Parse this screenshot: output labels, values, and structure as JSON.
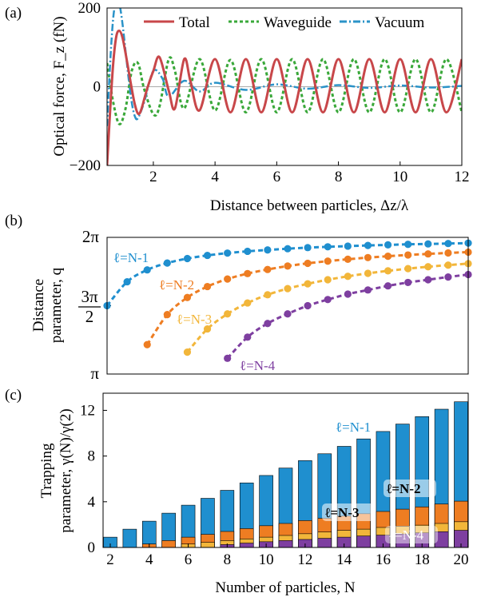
{
  "colors": {
    "total": "#c8474a",
    "waveguide": "#3aa83a",
    "vacuum": "#2b93c8",
    "l1": "#1f8fcf",
    "l2": "#ee7d22",
    "l3": "#f2b63a",
    "l4": "#7e3fa0",
    "zero_line": "#aaaaaa"
  },
  "chart_data": [
    {
      "type": "line",
      "panel_label": "(a)",
      "xlabel": "Distance between particles, Δz/λ",
      "ylabel": "Optical force, F_z (fN)",
      "xlim": [
        0.5,
        12
      ],
      "ylim": [
        -200,
        200
      ],
      "xticks": [
        2,
        4,
        6,
        8,
        10,
        12
      ],
      "xtick_labels": [
        "2",
        "4",
        "6",
        "8",
        "10",
        "12"
      ],
      "yticks": [
        -200,
        0,
        200
      ],
      "ytick_labels": [
        "−200",
        "0",
        "200"
      ],
      "legend": [
        "Total",
        "Waveguide",
        "Vacuum"
      ],
      "legend_placement": "top",
      "grid": false,
      "series": [
        {
          "name": "Total",
          "x": [
            0.5,
            0.6,
            0.7,
            0.8,
            0.9,
            1.0,
            1.1,
            1.2,
            1.3,
            1.4,
            1.5,
            1.6,
            1.8,
            2.0,
            2.2,
            2.5,
            2.7,
            3.0,
            3.2,
            3.5,
            4.0,
            4.5,
            5.0,
            5.5,
            6.0,
            6.5,
            7.0,
            7.5,
            8.0,
            8.5,
            9.0,
            9.5,
            10.0,
            10.5,
            11.0,
            11.5,
            12.0
          ],
          "y": [
            -200,
            -60,
            60,
            128,
            142,
            125,
            85,
            40,
            -5,
            -45,
            -68,
            -60,
            -5,
            40,
            75,
            -10,
            -55,
            70,
            15,
            -60,
            70,
            -65,
            70,
            -65,
            70,
            -65,
            70,
            -65,
            70,
            -65,
            70,
            -65,
            70,
            -65,
            70,
            -65,
            70
          ]
        },
        {
          "name": "Waveguide",
          "x": [
            0.5,
            0.7,
            0.9,
            1.1,
            1.3,
            1.5,
            1.7,
            2.0,
            2.2,
            2.5,
            2.7,
            3.0,
            3.5,
            4.0,
            4.5,
            5.0,
            5.5,
            6.0,
            6.5,
            7.0,
            7.5,
            8.0,
            8.5,
            9.0,
            9.5,
            10.0,
            10.5,
            11.0,
            11.5,
            12.0
          ],
          "y": [
            60,
            -40,
            -95,
            -55,
            40,
            60,
            -5,
            -70,
            -50,
            70,
            40,
            -55,
            70,
            -60,
            68,
            -65,
            70,
            -65,
            70,
            -65,
            70,
            -65,
            70,
            -65,
            70,
            -65,
            70,
            -65,
            70,
            -65
          ]
        },
        {
          "name": "Vacuum",
          "x": [
            0.5,
            0.6,
            0.7,
            0.8,
            0.9,
            1.0,
            1.1,
            1.2,
            1.3,
            1.4,
            1.5,
            1.7,
            2.0,
            2.3,
            2.5,
            3.0,
            3.5,
            4.0,
            5.0,
            6.0,
            7.0,
            8.0,
            9.0,
            10.0,
            11.0,
            12.0
          ],
          "y": [
            -100,
            60,
            175,
            220,
            210,
            160,
            90,
            20,
            -40,
            -75,
            -80,
            -40,
            40,
            20,
            -25,
            15,
            -12,
            10,
            -8,
            6,
            -5,
            4,
            -3,
            3,
            -2,
            2
          ]
        }
      ]
    },
    {
      "type": "scatter",
      "panel_label": "(b)",
      "ylabel": "Distance parameter, q",
      "xlim": [
        2,
        20
      ],
      "ylim": [
        1,
        2
      ],
      "ytick_labels": [
        "π",
        "3π/2",
        "2π"
      ],
      "grid": false,
      "series": [
        {
          "name": "ℓ=N-1",
          "x": [
            2,
            3,
            4,
            5,
            6,
            7,
            8,
            9,
            10,
            11,
            12,
            13,
            14,
            15,
            16,
            17,
            18,
            19,
            20
          ],
          "y": [
            1.5,
            1.675,
            1.762,
            1.812,
            1.845,
            1.868,
            1.885,
            1.898,
            1.908,
            1.917,
            1.925,
            1.931,
            1.936,
            1.941,
            1.945,
            1.949,
            1.952,
            1.955,
            1.958
          ]
        },
        {
          "name": "ℓ=N-2",
          "x": [
            4,
            5,
            6,
            7,
            8,
            9,
            10,
            11,
            12,
            13,
            14,
            15,
            16,
            17,
            18,
            19,
            20
          ],
          "y": [
            1.215,
            1.435,
            1.56,
            1.64,
            1.695,
            1.735,
            1.765,
            1.79,
            1.81,
            1.826,
            1.84,
            1.852,
            1.862,
            1.871,
            1.879,
            1.886,
            1.892
          ]
        },
        {
          "name": "ℓ=N-3",
          "x": [
            6,
            7,
            8,
            9,
            10,
            11,
            12,
            13,
            14,
            15,
            16,
            17,
            18,
            19,
            20
          ],
          "y": [
            1.16,
            1.33,
            1.44,
            1.52,
            1.58,
            1.625,
            1.66,
            1.69,
            1.715,
            1.737,
            1.755,
            1.771,
            1.785,
            1.797,
            1.808
          ]
        },
        {
          "name": "ℓ=N-4",
          "x": [
            8,
            9,
            10,
            11,
            12,
            13,
            14,
            15,
            16,
            17,
            18,
            19,
            20
          ],
          "y": [
            1.115,
            1.27,
            1.37,
            1.44,
            1.5,
            1.545,
            1.585,
            1.615,
            1.645,
            1.67,
            1.69,
            1.71,
            1.728
          ]
        }
      ],
      "annotations": [
        "ℓ=N-1",
        "ℓ=N-2",
        "ℓ=N-3",
        "ℓ=N-4"
      ]
    },
    {
      "type": "bar",
      "panel_label": "(c)",
      "xlabel": "Number of particles, N",
      "ylabel": "Trapping parameter, γ(N)/γ(2)",
      "xlim": [
        2,
        20
      ],
      "ylim": [
        0,
        13.5
      ],
      "xticks": [
        2,
        4,
        6,
        8,
        10,
        12,
        14,
        16,
        18,
        20
      ],
      "yticks": [
        0,
        4,
        8,
        12
      ],
      "grid": false,
      "categories": [
        2,
        3,
        4,
        5,
        6,
        7,
        8,
        9,
        10,
        11,
        12,
        13,
        14,
        15,
        16,
        17,
        18,
        19,
        20
      ],
      "series": [
        {
          "name": "ℓ=N-1",
          "values": [
            0.9,
            1.6,
            2.3,
            3.0,
            3.7,
            4.3,
            5.0,
            5.65,
            6.3,
            6.95,
            7.6,
            8.2,
            8.85,
            9.5,
            10.15,
            10.8,
            11.45,
            12.1,
            12.75
          ]
        },
        {
          "name": "ℓ=N-2",
          "values": [
            0,
            0,
            0.3,
            0.6,
            0.9,
            1.15,
            1.4,
            1.65,
            1.9,
            2.1,
            2.35,
            2.55,
            2.75,
            2.95,
            3.15,
            3.35,
            3.55,
            3.8,
            4.05
          ]
        },
        {
          "name": "ℓ=N-3",
          "values": [
            0,
            0,
            0,
            0,
            0.3,
            0.45,
            0.6,
            0.75,
            0.9,
            1.05,
            1.2,
            1.35,
            1.5,
            1.6,
            1.75,
            1.85,
            1.95,
            2.1,
            2.25
          ]
        },
        {
          "name": "ℓ=N-4",
          "values": [
            0,
            0,
            0,
            0,
            0,
            0,
            0.25,
            0.38,
            0.5,
            0.6,
            0.7,
            0.8,
            0.9,
            1.0,
            1.08,
            1.18,
            1.28,
            1.38,
            1.5
          ]
        }
      ],
      "annotations": [
        "ℓ=N-1",
        "ℓ=N-2",
        "ℓ=N-3",
        "ℓ=N-4"
      ]
    }
  ]
}
